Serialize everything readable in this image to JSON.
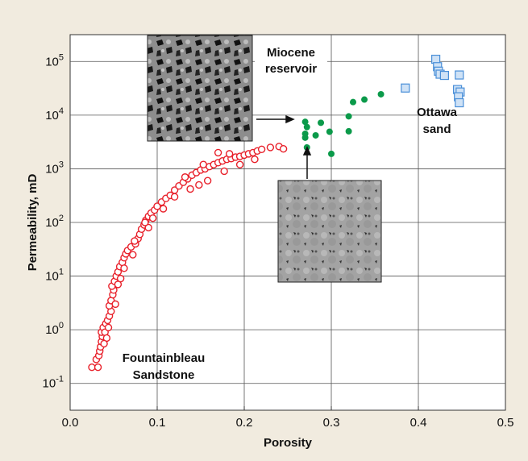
{
  "chart_data": {
    "type": "scatter",
    "title": "",
    "xlabel": "Porosity",
    "ylabel": "Permeability, mD",
    "xlim": [
      0.0,
      0.5
    ],
    "ylim_log10": [
      -1.5,
      5.5
    ],
    "y_scale": "log",
    "grid": true,
    "x_ticks": [
      {
        "value": 0.0,
        "label": "0.0"
      },
      {
        "value": 0.1,
        "label": "0.1"
      },
      {
        "value": 0.2,
        "label": "0.2"
      },
      {
        "value": 0.3,
        "label": "0.3"
      },
      {
        "value": 0.4,
        "label": "0.4"
      },
      {
        "value": 0.5,
        "label": "0.5"
      }
    ],
    "y_ticks": [
      {
        "exp": -1,
        "base": "10",
        "sup": "-1"
      },
      {
        "exp": 0,
        "base": "10",
        "sup": "0"
      },
      {
        "exp": 1,
        "base": "10",
        "sup": "1"
      },
      {
        "exp": 2,
        "base": "10",
        "sup": "2"
      },
      {
        "exp": 3,
        "base": "10",
        "sup": "3"
      },
      {
        "exp": 4,
        "base": "10",
        "sup": "4"
      },
      {
        "exp": 5,
        "base": "10",
        "sup": "5"
      }
    ],
    "annotations": {
      "fontainebleau": [
        "Fountainbleau",
        "Sandstone"
      ],
      "miocene": [
        "Miocene",
        "reservoir"
      ],
      "ottawa": [
        "Ottawa",
        "sand"
      ]
    },
    "colors": {
      "fontainebleau": "#e8202a",
      "miocene": "#0b9a4a",
      "ottawa": "#4a8fd8",
      "ottawa_fill": "#cfe2f6",
      "grid": "#555555"
    },
    "series": [
      {
        "marker": "open-circle",
        "points": [
          [
            0.025,
            0.2
          ],
          [
            0.03,
            0.28
          ],
          [
            0.032,
            0.2
          ],
          [
            0.033,
            0.33
          ],
          [
            0.034,
            0.4
          ],
          [
            0.035,
            0.48
          ],
          [
            0.036,
            0.6
          ],
          [
            0.037,
            0.75
          ],
          [
            0.036,
            0.9
          ],
          [
            0.038,
            1.1
          ],
          [
            0.04,
            0.9
          ],
          [
            0.041,
            1.3
          ],
          [
            0.043,
            1.5
          ],
          [
            0.045,
            1.8
          ],
          [
            0.047,
            2.2
          ],
          [
            0.045,
            2.8
          ],
          [
            0.047,
            3.5
          ],
          [
            0.049,
            4.5
          ],
          [
            0.05,
            5.5
          ],
          [
            0.048,
            6.5
          ],
          [
            0.051,
            8
          ],
          [
            0.053,
            10
          ],
          [
            0.055,
            12
          ],
          [
            0.057,
            15
          ],
          [
            0.06,
            18
          ],
          [
            0.062,
            22
          ],
          [
            0.064,
            26
          ],
          [
            0.066,
            30
          ],
          [
            0.07,
            35
          ],
          [
            0.075,
            40
          ],
          [
            0.078,
            50
          ],
          [
            0.08,
            60
          ],
          [
            0.082,
            75
          ],
          [
            0.085,
            90
          ],
          [
            0.087,
            110
          ],
          [
            0.09,
            130
          ],
          [
            0.093,
            150
          ],
          [
            0.097,
            170
          ],
          [
            0.1,
            200
          ],
          [
            0.105,
            240
          ],
          [
            0.11,
            280
          ],
          [
            0.115,
            320
          ],
          [
            0.12,
            400
          ],
          [
            0.125,
            480
          ],
          [
            0.13,
            560
          ],
          [
            0.135,
            650
          ],
          [
            0.14,
            760
          ],
          [
            0.145,
            850
          ],
          [
            0.15,
            950
          ],
          [
            0.155,
            1000
          ],
          [
            0.16,
            1100
          ],
          [
            0.165,
            1200
          ],
          [
            0.17,
            1300
          ],
          [
            0.175,
            1400
          ],
          [
            0.18,
            1500
          ],
          [
            0.185,
            1550
          ],
          [
            0.19,
            1650
          ],
          [
            0.195,
            1700
          ],
          [
            0.2,
            1800
          ],
          [
            0.205,
            1900
          ],
          [
            0.21,
            2000
          ],
          [
            0.215,
            2150
          ],
          [
            0.22,
            2300
          ],
          [
            0.23,
            2500
          ],
          [
            0.24,
            2600
          ],
          [
            0.245,
            2350
          ],
          [
            0.17,
            2000
          ],
          [
            0.183,
            1900
          ],
          [
            0.148,
            500
          ],
          [
            0.138,
            420
          ],
          [
            0.158,
            600
          ],
          [
            0.12,
            300
          ],
          [
            0.09,
            80
          ],
          [
            0.074,
            45
          ],
          [
            0.072,
            25
          ],
          [
            0.062,
            14
          ],
          [
            0.055,
            7
          ],
          [
            0.058,
            9
          ],
          [
            0.052,
            3
          ],
          [
            0.044,
            1.1
          ],
          [
            0.042,
            0.7
          ],
          [
            0.039,
            0.55
          ],
          [
            0.086,
            100
          ],
          [
            0.095,
            120
          ],
          [
            0.107,
            180
          ],
          [
            0.132,
            700
          ],
          [
            0.153,
            1200
          ],
          [
            0.177,
            900
          ],
          [
            0.195,
            1200
          ],
          [
            0.212,
            1500
          ]
        ]
      },
      {
        "marker": "filled-circle",
        "points": [
          [
            0.27,
            7500
          ],
          [
            0.272,
            6000
          ],
          [
            0.27,
            4500
          ],
          [
            0.27,
            3800
          ],
          [
            0.272,
            2500
          ],
          [
            0.282,
            4200
          ],
          [
            0.288,
            7200
          ],
          [
            0.298,
            4900
          ],
          [
            0.3,
            1900
          ],
          [
            0.32,
            9500
          ],
          [
            0.32,
            5000
          ],
          [
            0.325,
            17500
          ],
          [
            0.338,
            19500
          ],
          [
            0.357,
            24500
          ]
        ]
      },
      {
        "marker": "open-square",
        "points": [
          [
            0.385,
            32000
          ],
          [
            0.42,
            110000
          ],
          [
            0.422,
            80000
          ],
          [
            0.423,
            66000
          ],
          [
            0.425,
            58000
          ],
          [
            0.43,
            55000
          ],
          [
            0.447,
            56000
          ],
          [
            0.445,
            30000
          ],
          [
            0.448,
            27000
          ],
          [
            0.446,
            22000
          ],
          [
            0.447,
            17000
          ]
        ]
      }
    ]
  }
}
